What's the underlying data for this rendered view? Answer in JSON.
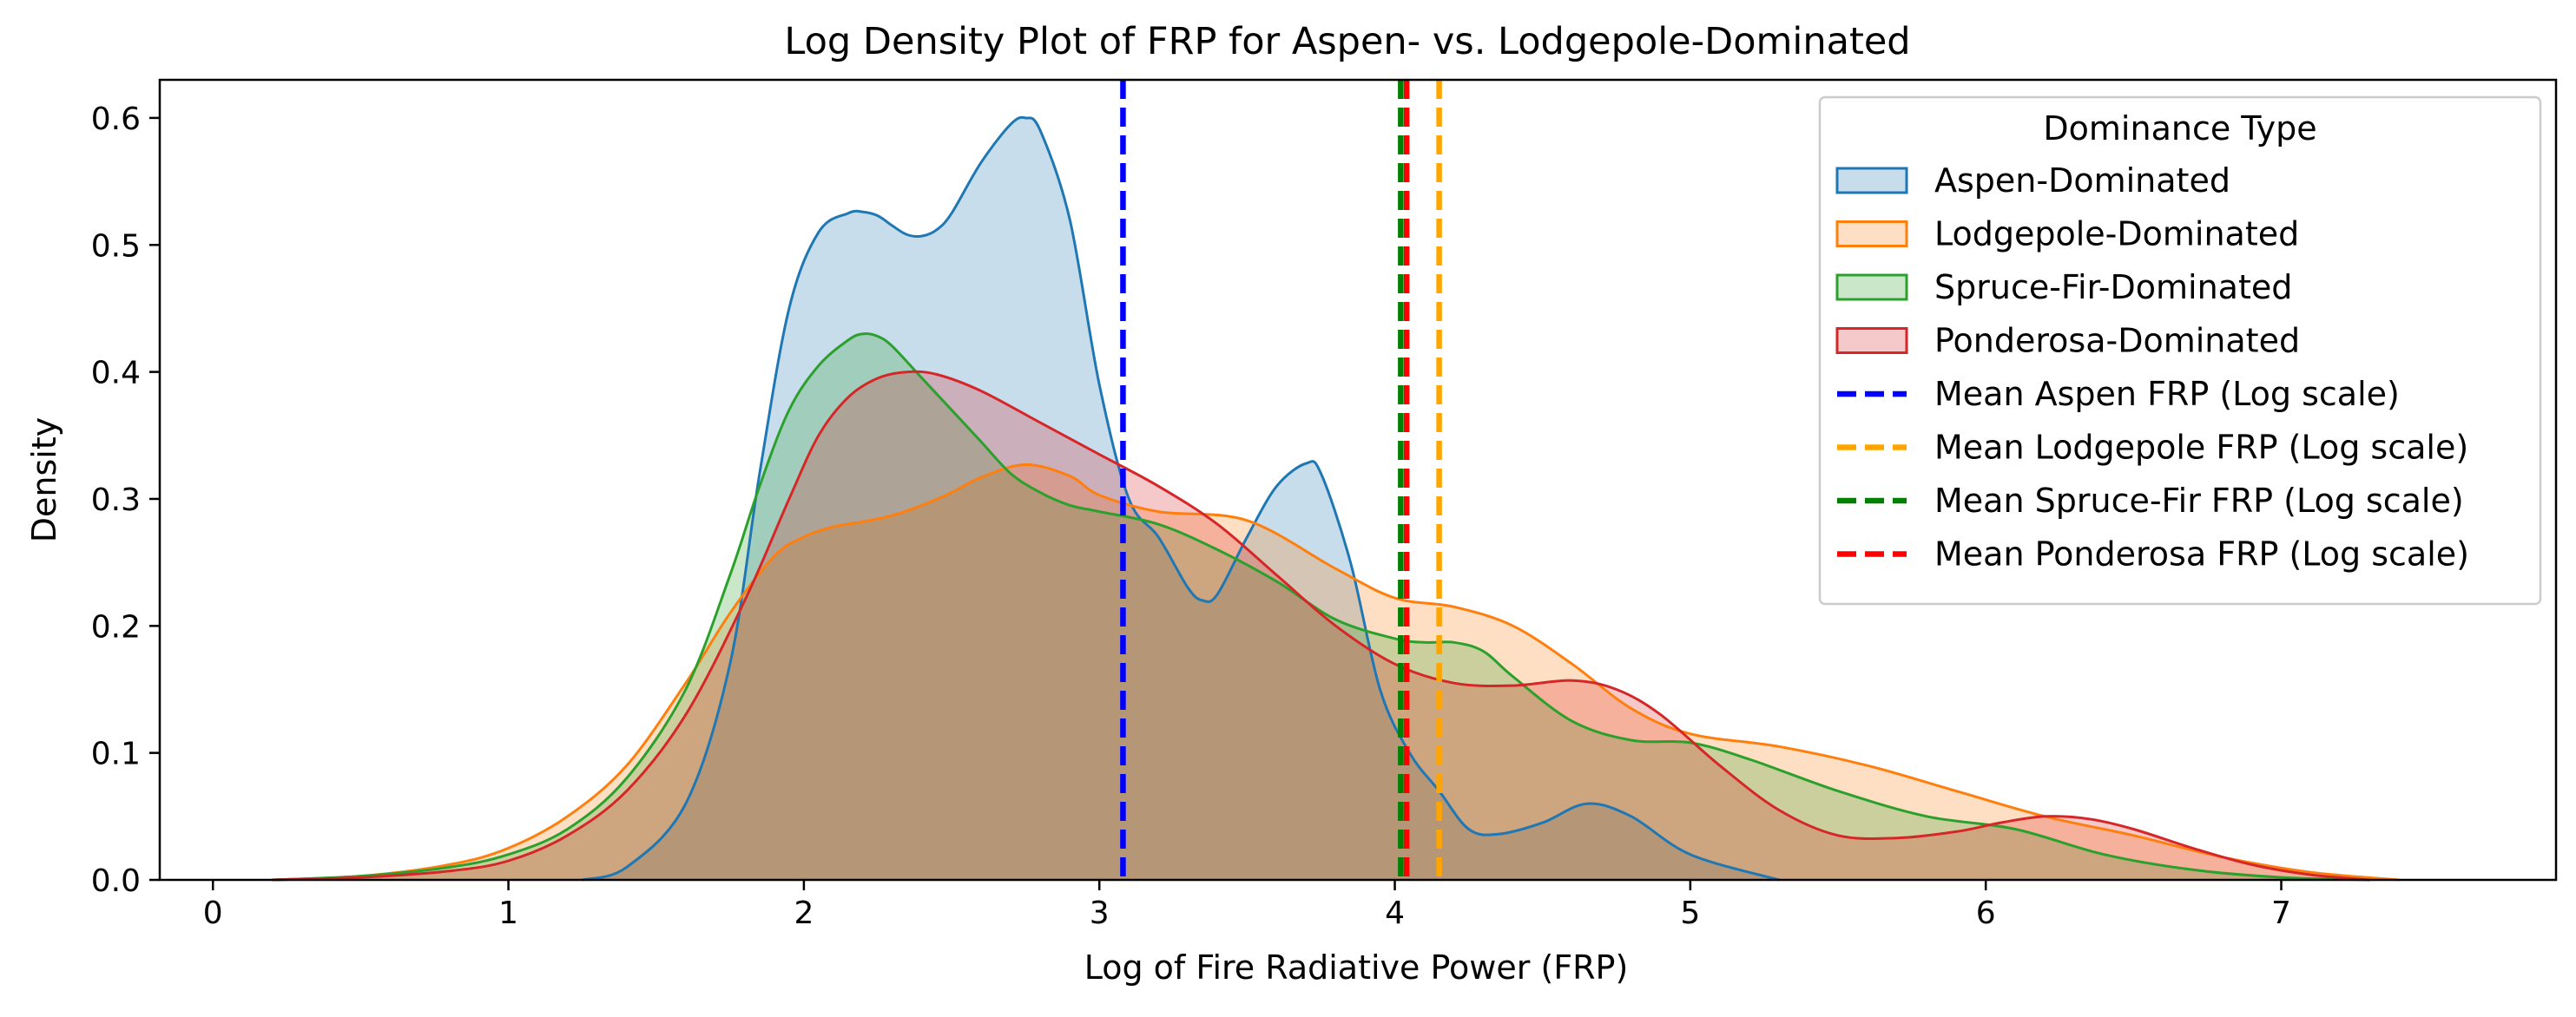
{
  "chart_data": {
    "type": "area",
    "title": "Log Density Plot of FRP for Aspen- vs. Lodgepole-Dominated",
    "xlabel": "Log of Fire Radiative Power (FRP)",
    "ylabel": "Density",
    "xlim": [
      -0.18,
      7.93
    ],
    "ylim": [
      0.0,
      0.63
    ],
    "xticks": [
      0,
      1,
      2,
      3,
      4,
      5,
      6,
      7
    ],
    "yticks": [
      0.0,
      0.1,
      0.2,
      0.3,
      0.4,
      0.5,
      0.6
    ],
    "xtick_labels": [
      "0",
      "1",
      "2",
      "3",
      "4",
      "5",
      "6",
      "7"
    ],
    "ytick_labels": [
      "0.0",
      "0.1",
      "0.2",
      "0.3",
      "0.4",
      "0.5",
      "0.6"
    ],
    "grid": false,
    "legend_title": "Dominance Type",
    "legend_position": "top-right",
    "series": [
      {
        "name": "Aspen-Dominated",
        "color": "#1f77b4",
        "x": [
          1.25,
          1.4,
          1.6,
          1.75,
          1.85,
          1.95,
          2.05,
          2.15,
          2.2,
          2.25,
          2.3,
          2.35,
          2.4,
          2.45,
          2.5,
          2.6,
          2.7,
          2.75,
          2.8,
          2.9,
          3.0,
          3.1,
          3.2,
          3.3,
          3.35,
          3.4,
          3.5,
          3.6,
          3.7,
          3.75,
          3.85,
          3.95,
          4.05,
          4.15,
          4.25,
          4.35,
          4.5,
          4.65,
          4.8,
          5.0,
          5.3
        ],
        "y": [
          0.0,
          0.01,
          0.06,
          0.17,
          0.32,
          0.45,
          0.51,
          0.525,
          0.526,
          0.523,
          0.515,
          0.508,
          0.507,
          0.512,
          0.525,
          0.565,
          0.595,
          0.6,
          0.59,
          0.52,
          0.39,
          0.3,
          0.27,
          0.23,
          0.22,
          0.225,
          0.27,
          0.31,
          0.328,
          0.32,
          0.25,
          0.15,
          0.1,
          0.07,
          0.04,
          0.036,
          0.045,
          0.06,
          0.05,
          0.02,
          0.0
        ]
      },
      {
        "name": "Lodgepole-Dominated",
        "color": "#ff7f0e",
        "x": [
          0.2,
          0.5,
          0.8,
          1.0,
          1.2,
          1.4,
          1.6,
          1.75,
          1.9,
          2.0,
          2.1,
          2.2,
          2.3,
          2.4,
          2.5,
          2.6,
          2.75,
          2.9,
          3.0,
          3.2,
          3.5,
          3.8,
          4.0,
          4.2,
          4.4,
          4.6,
          4.8,
          5.0,
          5.3,
          5.6,
          5.9,
          6.2,
          6.5,
          6.8,
          7.1,
          7.4
        ],
        "y": [
          0.0,
          0.003,
          0.012,
          0.025,
          0.05,
          0.09,
          0.155,
          0.21,
          0.255,
          0.27,
          0.278,
          0.282,
          0.287,
          0.295,
          0.305,
          0.317,
          0.327,
          0.318,
          0.303,
          0.29,
          0.283,
          0.245,
          0.222,
          0.215,
          0.2,
          0.17,
          0.135,
          0.115,
          0.105,
          0.09,
          0.07,
          0.05,
          0.035,
          0.018,
          0.006,
          0.0
        ]
      },
      {
        "name": "Spruce-Fir-Dominated",
        "color": "#2ca02c",
        "x": [
          0.2,
          0.5,
          0.8,
          1.0,
          1.2,
          1.4,
          1.6,
          1.75,
          1.85,
          1.95,
          2.05,
          2.15,
          2.2,
          2.25,
          2.3,
          2.4,
          2.5,
          2.6,
          2.7,
          2.8,
          2.9,
          3.0,
          3.2,
          3.4,
          3.6,
          3.8,
          4.0,
          4.1,
          4.2,
          4.3,
          4.4,
          4.6,
          4.8,
          5.0,
          5.2,
          5.5,
          5.8,
          6.1,
          6.4,
          6.7,
          7.0,
          7.3
        ],
        "y": [
          0.0,
          0.003,
          0.01,
          0.02,
          0.04,
          0.08,
          0.15,
          0.24,
          0.31,
          0.37,
          0.405,
          0.425,
          0.43,
          0.428,
          0.42,
          0.395,
          0.37,
          0.345,
          0.32,
          0.305,
          0.295,
          0.29,
          0.28,
          0.26,
          0.235,
          0.205,
          0.19,
          0.187,
          0.187,
          0.18,
          0.16,
          0.125,
          0.11,
          0.108,
          0.095,
          0.07,
          0.05,
          0.04,
          0.02,
          0.008,
          0.002,
          0.0
        ]
      },
      {
        "name": "Ponderosa-Dominated",
        "color": "#d62728",
        "x": [
          0.2,
          0.5,
          0.8,
          1.0,
          1.2,
          1.4,
          1.6,
          1.8,
          1.95,
          2.05,
          2.15,
          2.25,
          2.35,
          2.45,
          2.6,
          2.8,
          3.0,
          3.2,
          3.4,
          3.6,
          3.8,
          4.0,
          4.2,
          4.4,
          4.6,
          4.75,
          4.9,
          5.1,
          5.3,
          5.5,
          5.7,
          5.9,
          6.05,
          6.2,
          6.35,
          6.5,
          6.7,
          6.9,
          7.1,
          7.3
        ],
        "y": [
          0.0,
          0.002,
          0.007,
          0.015,
          0.035,
          0.07,
          0.13,
          0.22,
          0.3,
          0.35,
          0.38,
          0.395,
          0.4,
          0.398,
          0.385,
          0.36,
          0.335,
          0.31,
          0.28,
          0.24,
          0.2,
          0.17,
          0.155,
          0.153,
          0.157,
          0.15,
          0.13,
          0.09,
          0.055,
          0.035,
          0.033,
          0.038,
          0.045,
          0.05,
          0.048,
          0.04,
          0.025,
          0.012,
          0.004,
          0.0
        ]
      }
    ],
    "vlines": [
      {
        "name": "Mean Aspen FRP (Log scale)",
        "x": 3.08,
        "color": "#0000ff"
      },
      {
        "name": "Mean Lodgepole FRP (Log scale)",
        "x": 4.15,
        "color": "#ffa500"
      },
      {
        "name": "Mean Spruce-Fir FRP (Log scale)",
        "x": 4.02,
        "color": "#008000"
      },
      {
        "name": "Mean Ponderosa FRP (Log scale)",
        "x": 4.04,
        "color": "#ff0000"
      }
    ]
  }
}
